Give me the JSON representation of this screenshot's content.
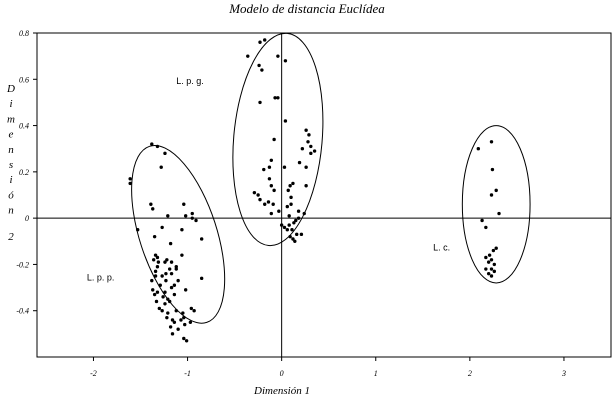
{
  "chart_data": {
    "type": "scatter",
    "title": "Modelo de distancia Euclídea",
    "xlabel": "Dimensión 1",
    "ylabel": "Dimensión 2",
    "xlim": [
      -2.6,
      3.5
    ],
    "ylim": [
      -0.6,
      0.8
    ],
    "xticks": [
      {
        "value": -2,
        "label": "-2"
      },
      {
        "value": -1,
        "label": "-1"
      },
      {
        "value": 0,
        "label": "0"
      },
      {
        "value": 1,
        "label": "1"
      },
      {
        "value": 2,
        "label": "2"
      },
      {
        "value": 3,
        "label": "3"
      }
    ],
    "yticks": [
      {
        "value": 0.8,
        "label": "0.8"
      },
      {
        "value": 0.6,
        "label": "0.6"
      },
      {
        "value": 0.4,
        "label": "0.4"
      },
      {
        "value": 0.2,
        "label": "0.2"
      },
      {
        "value": 0,
        "label": "0"
      },
      {
        "value": -0.2,
        "label": "-0.2"
      },
      {
        "value": -0.4,
        "label": "-0.4"
      }
    ],
    "grid": false,
    "legend": "none",
    "groups": [
      {
        "label": "L. p. g.",
        "label_at": [
          -1.12,
          0.58
        ],
        "ellipse": {
          "cx": -0.04,
          "cy": 0.34,
          "rx": 0.47,
          "ry": 0.46,
          "rotation_deg": 5
        },
        "points": [
          [
            -0.23,
            0.76
          ],
          [
            -0.36,
            0.7
          ],
          [
            -0.18,
            0.77
          ],
          [
            -0.04,
            0.7
          ],
          [
            0.04,
            0.68
          ],
          [
            -0.24,
            0.66
          ],
          [
            -0.21,
            0.64
          ],
          [
            -0.04,
            0.52
          ],
          [
            -0.07,
            0.52
          ],
          [
            -0.23,
            0.5
          ],
          [
            0.04,
            0.42
          ],
          [
            0.26,
            0.38
          ],
          [
            0.29,
            0.36
          ],
          [
            0.28,
            0.33
          ],
          [
            0.31,
            0.31
          ],
          [
            0.22,
            0.3
          ],
          [
            0.35,
            0.29
          ],
          [
            0.31,
            0.28
          ],
          [
            -0.08,
            0.34
          ],
          [
            -0.11,
            0.25
          ],
          [
            -0.13,
            0.22
          ],
          [
            0.03,
            0.22
          ],
          [
            -0.19,
            0.21
          ],
          [
            0.19,
            0.24
          ],
          [
            -0.11,
            0.14
          ],
          [
            0.09,
            0.14
          ],
          [
            0.26,
            0.22
          ],
          [
            -0.13,
            0.17
          ],
          [
            -0.09,
            0.06
          ],
          [
            -0.11,
            0.02
          ],
          [
            0.12,
            0.15
          ],
          [
            0.26,
            0.14
          ],
          [
            -0.29,
            0.11
          ],
          [
            -0.25,
            0.1
          ],
          [
            -0.23,
            0.08
          ],
          [
            -0.08,
            0.12
          ],
          [
            -0.14,
            0.07
          ],
          [
            -0.18,
            0.06
          ],
          [
            0.07,
            0.12
          ],
          [
            0.1,
            0.09
          ],
          [
            0.1,
            0.06
          ],
          [
            0.18,
            0.03
          ],
          [
            0.24,
            0.02
          ],
          [
            0.18,
            0.0
          ],
          [
            0.06,
            0.05
          ],
          [
            0.08,
            0.01
          ],
          [
            -0.03,
            0.03
          ],
          [
            0.15,
            -0.01
          ],
          [
            0.0,
            -0.03
          ],
          [
            0.03,
            -0.04
          ],
          [
            0.06,
            -0.05
          ],
          [
            0.11,
            -0.05
          ],
          [
            0.21,
            -0.07
          ],
          [
            0.12,
            -0.09
          ],
          [
            0.16,
            -0.07
          ],
          [
            0.09,
            -0.08
          ],
          [
            0.08,
            -0.03
          ],
          [
            0.14,
            -0.1
          ],
          [
            0.13,
            -0.02
          ]
        ]
      },
      {
        "label": "L. p. p.",
        "label_at": [
          -2.07,
          -0.27
        ],
        "ellipse": {
          "cx": -1.1,
          "cy": -0.07,
          "rx": 0.41,
          "ry": 0.4,
          "rotation_deg": -18
        },
        "points": [
          [
            -1.61,
            0.17
          ],
          [
            -1.61,
            0.15
          ],
          [
            -1.38,
            0.32
          ],
          [
            -1.32,
            0.31
          ],
          [
            -1.24,
            0.28
          ],
          [
            -1.28,
            0.22
          ],
          [
            -1.39,
            0.06
          ],
          [
            -1.37,
            0.04
          ],
          [
            -1.21,
            0.01
          ],
          [
            -1.04,
            0.06
          ],
          [
            -0.95,
            0.02
          ],
          [
            -1.02,
            0.01
          ],
          [
            -0.95,
            0.0
          ],
          [
            -0.91,
            -0.01
          ],
          [
            -1.53,
            -0.05
          ],
          [
            -1.27,
            -0.04
          ],
          [
            -1.35,
            -0.08
          ],
          [
            -1.06,
            -0.05
          ],
          [
            -0.85,
            -0.09
          ],
          [
            -1.18,
            -0.11
          ],
          [
            -1.32,
            -0.17
          ],
          [
            -1.34,
            -0.16
          ],
          [
            -1.22,
            -0.18
          ],
          [
            -1.31,
            -0.19
          ],
          [
            -1.36,
            -0.18
          ],
          [
            -1.24,
            -0.19
          ],
          [
            -1.17,
            -0.19
          ],
          [
            -1.06,
            -0.16
          ],
          [
            -1.32,
            -0.21
          ],
          [
            -1.34,
            -0.23
          ],
          [
            -1.19,
            -0.22
          ],
          [
            -1.12,
            -0.21
          ],
          [
            -1.23,
            -0.24
          ],
          [
            -1.34,
            -0.25
          ],
          [
            -1.27,
            -0.25
          ],
          [
            -1.17,
            -0.24
          ],
          [
            -1.12,
            -0.22
          ],
          [
            -1.38,
            -0.27
          ],
          [
            -1.29,
            -0.29
          ],
          [
            -1.23,
            -0.27
          ],
          [
            -1.1,
            -0.27
          ],
          [
            -1.14,
            -0.29
          ],
          [
            -1.37,
            -0.31
          ],
          [
            -1.32,
            -0.32
          ],
          [
            -1.24,
            -0.32
          ],
          [
            -1.17,
            -0.3
          ],
          [
            -1.35,
            -0.33
          ],
          [
            -1.26,
            -0.34
          ],
          [
            -1.21,
            -0.35
          ],
          [
            -1.33,
            -0.36
          ],
          [
            -1.24,
            -0.37
          ],
          [
            -1.3,
            -0.39
          ],
          [
            -1.19,
            -0.36
          ],
          [
            -1.14,
            -0.33
          ],
          [
            -1.02,
            -0.31
          ],
          [
            -0.85,
            -0.26
          ],
          [
            -1.27,
            -0.4
          ],
          [
            -1.21,
            -0.41
          ],
          [
            -1.12,
            -0.4
          ],
          [
            -0.96,
            -0.39
          ],
          [
            -0.93,
            -0.4
          ],
          [
            -1.05,
            -0.41
          ],
          [
            -1.22,
            -0.43
          ],
          [
            -1.14,
            -0.45
          ],
          [
            -1.04,
            -0.43
          ],
          [
            -1.18,
            -0.47
          ],
          [
            -1.07,
            -0.44
          ],
          [
            -1.1,
            -0.48
          ],
          [
            -1.16,
            -0.44
          ],
          [
            -1.03,
            -0.46
          ],
          [
            -1.16,
            -0.5
          ],
          [
            -1.04,
            -0.52
          ],
          [
            -1.01,
            -0.53
          ],
          [
            -0.97,
            -0.45
          ]
        ]
      },
      {
        "label": "L. c.",
        "label_at": [
          1.61,
          -0.14
        ],
        "ellipse": {
          "cx": 2.28,
          "cy": 0.06,
          "rx": 0.36,
          "ry": 0.34,
          "rotation_deg": 0
        },
        "points": [
          [
            2.23,
            0.33
          ],
          [
            2.09,
            0.3
          ],
          [
            2.24,
            0.21
          ],
          [
            2.28,
            0.12
          ],
          [
            2.23,
            0.1
          ],
          [
            2.31,
            0.02
          ],
          [
            2.13,
            -0.01
          ],
          [
            2.17,
            -0.04
          ],
          [
            2.28,
            -0.13
          ],
          [
            2.25,
            -0.14
          ],
          [
            2.21,
            -0.16
          ],
          [
            2.17,
            -0.17
          ],
          [
            2.23,
            -0.18
          ],
          [
            2.2,
            -0.19
          ],
          [
            2.26,
            -0.2
          ],
          [
            2.17,
            -0.22
          ],
          [
            2.23,
            -0.22
          ],
          [
            2.26,
            -0.23
          ],
          [
            2.2,
            -0.24
          ],
          [
            2.23,
            -0.25
          ]
        ]
      }
    ]
  }
}
